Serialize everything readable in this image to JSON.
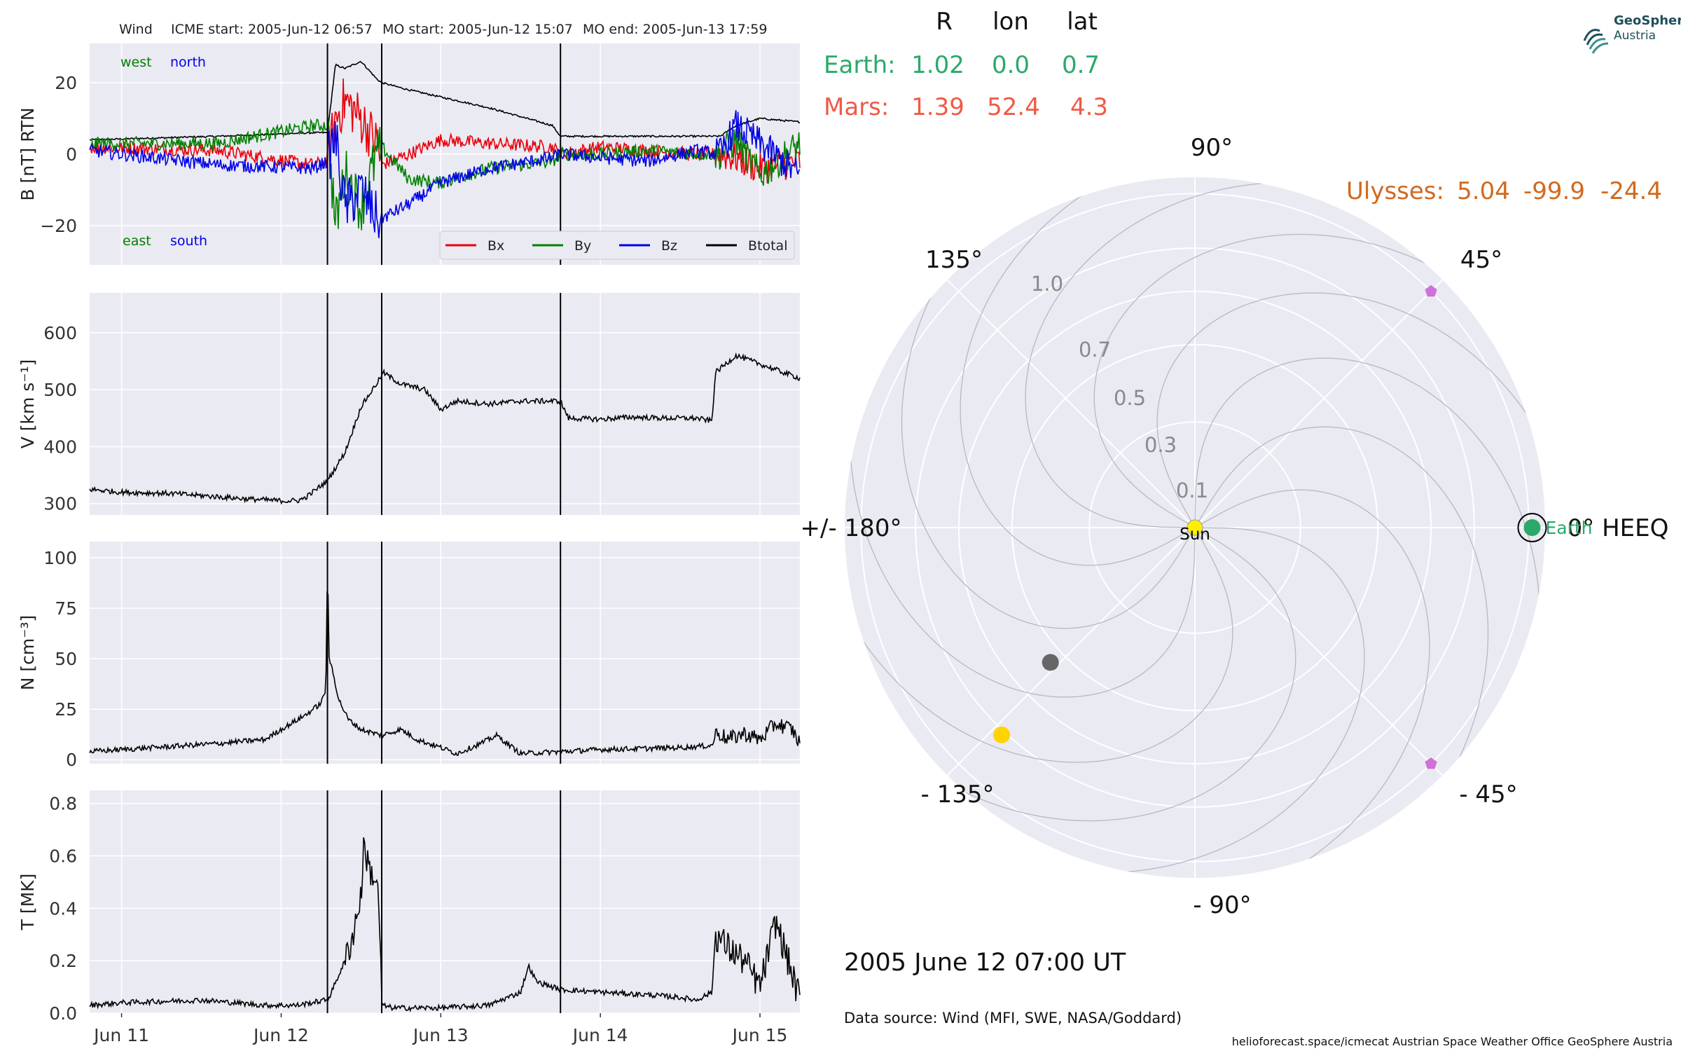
{
  "header": {
    "spacecraft": "Wind",
    "icme_start": "ICME start: 2005-Jun-12 06:57",
    "mo_start": "MO start: 2005-Jun-12 15:07",
    "mo_end": "MO end: 2005-Jun-13 17:59"
  },
  "logo": {
    "line1": "GeoSphere",
    "line2": "Austria"
  },
  "table": {
    "headers": [
      "R",
      "lon",
      "lat"
    ],
    "rows": [
      {
        "name": "Earth:",
        "R": "1.02",
        "lon": "0.0",
        "lat": "0.7",
        "color": "#2aa96a"
      },
      {
        "name": "Mars:",
        "R": "1.39",
        "lon": "52.4",
        "lat": "4.3",
        "color": "#f05a46"
      }
    ],
    "ulysses": {
      "name": "Ulysses:",
      "R": "5.04",
      "lon": "-99.9",
      "lat": "-24.4",
      "color": "#d2691e"
    }
  },
  "footer": {
    "date": "2005 June 12  07:00 UT",
    "source": "Data source: Wind (MFI, SWE, NASA/Goddard)",
    "credits": "helioforecast.space/icmecat   Austrian Space Weather Office   GeoSphere Austria"
  },
  "chart_data": [
    {
      "type": "line",
      "panel": "magnetic-field",
      "ylabel": "B [nT] RTN",
      "ylim": [
        -31,
        31
      ],
      "yticks": [
        -20,
        0,
        20
      ],
      "ytick_labels": [
        "−20",
        "0",
        "20"
      ],
      "annotations": {
        "top_left": "west",
        "top_right": "north",
        "bottom_left": "east",
        "bottom_right": "south"
      },
      "legend": [
        "Bx",
        "By",
        "Bz",
        "Btotal"
      ],
      "legend_placement": "lower-right",
      "x_days": [
        10.8,
        11.6,
        12.2,
        12.29,
        12.34,
        12.4,
        12.5,
        12.6,
        12.63,
        12.8,
        13.0,
        13.3,
        13.7,
        13.75,
        14.0,
        14.3,
        14.6,
        14.75,
        14.85,
        15.0,
        15.25
      ],
      "series": [
        {
          "name": "Btotal",
          "color": "#000000",
          "values": [
            4,
            5,
            6,
            6,
            25,
            24,
            26,
            21,
            20,
            18,
            16,
            13,
            8,
            5,
            5,
            5,
            5,
            5,
            8,
            10,
            9
          ]
        },
        {
          "name": "Bx",
          "color": "#e8000b",
          "values": [
            2,
            1,
            -3,
            -2,
            10,
            15,
            10,
            3,
            -3,
            0,
            4,
            3,
            2,
            0,
            2,
            1,
            0,
            0,
            -1,
            -4,
            -2
          ]
        },
        {
          "name": "By",
          "color": "#008000",
          "values": [
            3,
            3,
            8,
            8,
            -20,
            -5,
            -15,
            0,
            2,
            -7,
            -8,
            -4,
            -2,
            0,
            0,
            1,
            0,
            0,
            4,
            -6,
            3
          ]
        },
        {
          "name": "Bz",
          "color": "#0000e8",
          "values": [
            1,
            -3,
            -4,
            -2,
            5,
            -15,
            -10,
            -18,
            -18,
            -14,
            -8,
            -4,
            -1,
            0,
            -1,
            -2,
            1,
            0,
            8,
            3,
            -6
          ]
        }
      ]
    },
    {
      "type": "line",
      "panel": "speed",
      "ylabel": "V [km s⁻¹]",
      "ylim": [
        280,
        670
      ],
      "yticks": [
        300,
        400,
        500,
        600
      ],
      "ytick_labels": [
        "300",
        "400",
        "500",
        "600"
      ],
      "x_days": [
        10.8,
        11.0,
        11.3,
        11.6,
        11.8,
        12.0,
        12.1,
        12.15,
        12.29,
        12.4,
        12.5,
        12.62,
        12.64,
        12.75,
        12.9,
        13.0,
        13.1,
        13.3,
        13.5,
        13.7,
        13.75,
        13.8,
        14.0,
        14.2,
        14.4,
        14.6,
        14.7,
        14.72,
        14.85,
        15.0,
        15.25
      ],
      "series": [
        {
          "name": "V",
          "color": "#000000",
          "values": [
            325,
            320,
            318,
            312,
            308,
            305,
            305,
            310,
            340,
            390,
            470,
            520,
            530,
            510,
            500,
            465,
            480,
            475,
            480,
            480,
            480,
            450,
            448,
            452,
            450,
            450,
            445,
            530,
            560,
            545,
            520
          ]
        }
      ]
    },
    {
      "type": "line",
      "panel": "density",
      "ylabel": "N [cm⁻³]",
      "ylim": [
        -2,
        108
      ],
      "yticks": [
        0,
        25,
        50,
        75,
        100
      ],
      "ytick_labels": [
        "0",
        "25",
        "50",
        "75",
        "100"
      ],
      "x_days": [
        10.8,
        11.2,
        11.6,
        11.9,
        12.0,
        12.15,
        12.25,
        12.28,
        12.29,
        12.3,
        12.32,
        12.36,
        12.42,
        12.5,
        12.63,
        12.75,
        12.85,
        13.0,
        13.1,
        13.25,
        13.35,
        13.5,
        13.75,
        14.0,
        14.5,
        14.7,
        14.73,
        14.8,
        14.9,
        15.0,
        15.1,
        15.2,
        15.25
      ],
      "series": [
        {
          "name": "N",
          "color": "#000000",
          "values": [
            4,
            6,
            8,
            10,
            15,
            22,
            28,
            35,
            100,
            50,
            45,
            30,
            20,
            15,
            12,
            15,
            10,
            6,
            3,
            8,
            12,
            3,
            4,
            5,
            6,
            7,
            14,
            10,
            13,
            10,
            18,
            15,
            8
          ]
        }
      ]
    },
    {
      "type": "line",
      "panel": "temperature",
      "ylabel": "T [MK]",
      "ylim": [
        0,
        0.85
      ],
      "yticks": [
        0.0,
        0.2,
        0.4,
        0.6,
        0.8
      ],
      "ytick_labels": [
        "0.0",
        "0.2",
        "0.4",
        "0.6",
        "0.8"
      ],
      "x_labels": [
        "Jun 11",
        "Jun 12",
        "Jun 13",
        "Jun 14",
        "Jun 15"
      ],
      "x_label_days": [
        11,
        12,
        13,
        14,
        15
      ],
      "x_days": [
        10.8,
        11.0,
        11.5,
        11.9,
        12.1,
        12.28,
        12.3,
        12.4,
        12.45,
        12.5,
        12.52,
        12.55,
        12.6,
        12.62,
        12.63,
        12.7,
        13.0,
        13.3,
        13.5,
        13.55,
        13.6,
        13.75,
        14.0,
        14.3,
        14.5,
        14.6,
        14.7,
        14.72,
        14.8,
        14.9,
        15.0,
        15.1,
        15.2,
        15.25
      ],
      "series": [
        {
          "name": "T",
          "color": "#000000",
          "values": [
            0.03,
            0.04,
            0.05,
            0.03,
            0.03,
            0.05,
            0.06,
            0.2,
            0.3,
            0.45,
            0.65,
            0.55,
            0.5,
            0.3,
            0.03,
            0.02,
            0.02,
            0.03,
            0.08,
            0.18,
            0.12,
            0.09,
            0.08,
            0.07,
            0.06,
            0.05,
            0.08,
            0.3,
            0.25,
            0.2,
            0.1,
            0.35,
            0.15,
            0.05
          ]
        }
      ]
    },
    {
      "type": "scatter",
      "panel": "heliosphere-polar",
      "angle_labels": [
        "90°",
        "45°",
        "0° HEEQ",
        "- 45°",
        "- 90°",
        "- 135°",
        "+/- 180°",
        "135°"
      ],
      "radial_ticks": [
        0.1,
        0.3,
        0.5,
        0.7,
        1.0
      ],
      "radial_tick_labels": [
        "0.1",
        "0.3",
        "0.5",
        "0.7",
        "1.0"
      ],
      "points": [
        {
          "name": "Sun",
          "r": 0.0,
          "lon_deg": 0,
          "color": "#ffee00"
        },
        {
          "name": "Earth",
          "r": 1.02,
          "lon_deg": 0.0,
          "color": "#2aa96a"
        },
        {
          "r": 0.35,
          "lon_deg": -137,
          "color": "#666666"
        },
        {
          "r": 0.72,
          "lon_deg": -133,
          "color": "#ffd400"
        },
        {
          "r": 1.0,
          "lon_deg": 45,
          "color": "#d070d8"
        },
        {
          "r": 1.0,
          "lon_deg": -45,
          "color": "#d070d8"
        }
      ]
    }
  ],
  "event_lines_days": [
    12.29,
    12.63,
    13.75
  ],
  "x_range_days": [
    10.8,
    15.25
  ]
}
